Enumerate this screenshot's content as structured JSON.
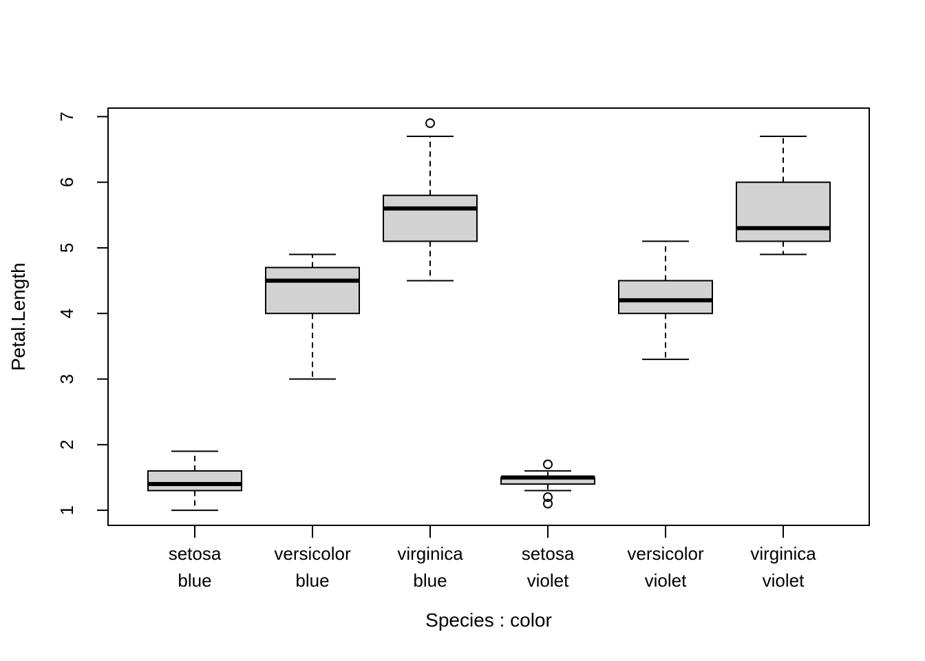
{
  "chart_data": {
    "type": "box",
    "xlabel": "Species : color",
    "ylabel": "Petal.Length",
    "ylim": [
      0.77,
      7.13
    ],
    "yticks": [
      1,
      2,
      3,
      4,
      5,
      6,
      7
    ],
    "categories": [
      {
        "line1": "setosa",
        "line2": "blue"
      },
      {
        "line1": "versicolor",
        "line2": "blue"
      },
      {
        "line1": "virginica",
        "line2": "blue"
      },
      {
        "line1": "setosa",
        "line2": "violet"
      },
      {
        "line1": "versicolor",
        "line2": "violet"
      },
      {
        "line1": "virginica",
        "line2": "violet"
      }
    ],
    "boxes": [
      {
        "whisker_low": 1.0,
        "q1": 1.3,
        "median": 1.4,
        "q3": 1.6,
        "whisker_high": 1.9,
        "outliers": []
      },
      {
        "whisker_low": 3.0,
        "q1": 4.0,
        "median": 4.5,
        "q3": 4.7,
        "whisker_high": 4.9,
        "outliers": []
      },
      {
        "whisker_low": 4.5,
        "q1": 5.1,
        "median": 5.6,
        "q3": 5.8,
        "whisker_high": 6.7,
        "outliers": [
          6.9
        ]
      },
      {
        "whisker_low": 1.3,
        "q1": 1.4,
        "median": 1.5,
        "q3": 1.5,
        "whisker_high": 1.6,
        "outliers": [
          1.7,
          1.2,
          1.1
        ]
      },
      {
        "whisker_low": 3.3,
        "q1": 4.0,
        "median": 4.2,
        "q3": 4.5,
        "whisker_high": 5.1,
        "outliers": []
      },
      {
        "whisker_low": 4.9,
        "q1": 5.1,
        "median": 5.3,
        "q3": 6.0,
        "whisker_high": 6.7,
        "outliers": []
      }
    ],
    "box_fill": "#d3d3d3",
    "line_color": "#000000",
    "grid": false,
    "legend": "none"
  }
}
